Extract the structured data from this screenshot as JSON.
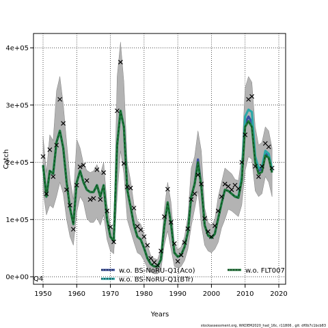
{
  "chart_data": {
    "type": "line",
    "title": "",
    "xlabel": "Years",
    "ylabel": "Catch",
    "xlim": [
      1947.5,
      2021.5
    ],
    "ylim": [
      -15000,
      425000
    ],
    "x_ticks": [
      1950,
      1960,
      1970,
      1980,
      1990,
      2000,
      2010,
      2020
    ],
    "x_tick_labels": [
      "1950",
      "1960",
      "1970",
      "1980",
      "1990",
      "2000",
      "2010",
      "2020"
    ],
    "y_ticks": [
      0,
      100000,
      200000,
      300000,
      400000
    ],
    "y_tick_labels": [
      "0e+00",
      "1e+05",
      "2e+05",
      "3e+05",
      "4e+05"
    ],
    "grid": true,
    "legend_position": "bottom",
    "corner_label": "Q4",
    "footer": "stockassessment.org, WKDEM2020_had_16c, r11806 , git: df0b7c1bcb83",
    "colors": {
      "band": "#b3b3b3",
      "band_edge": "#7f7f7f",
      "aco": "#3b4fa0",
      "btr": "#2aa8a8",
      "flt": "#1f7a3a"
    },
    "years": [
      1950,
      1951,
      1952,
      1953,
      1954,
      1955,
      1956,
      1957,
      1958,
      1959,
      1960,
      1961,
      1962,
      1963,
      1964,
      1965,
      1966,
      1967,
      1968,
      1969,
      1970,
      1971,
      1972,
      1973,
      1974,
      1975,
      1976,
      1977,
      1978,
      1979,
      1980,
      1981,
      1982,
      1983,
      1984,
      1985,
      1986,
      1987,
      1988,
      1989,
      1990,
      1991,
      1992,
      1993,
      1994,
      1995,
      1996,
      1997,
      1998,
      1999,
      2000,
      2001,
      2002,
      2003,
      2004,
      2005,
      2006,
      2007,
      2008,
      2009,
      2010,
      2011,
      2012,
      2013,
      2014,
      2015,
      2016,
      2017,
      2018
    ],
    "band": {
      "lower": [
        150000,
        108000,
        125000,
        120000,
        140000,
        165000,
        145000,
        100000,
        70000,
        55000,
        112000,
        140000,
        130000,
        102000,
        95000,
        95000,
        103000,
        90000,
        108000,
        65000,
        45000,
        40000,
        140000,
        220000,
        180000,
        100000,
        80000,
        60000,
        42000,
        38000,
        28000,
        15000,
        8000,
        5000,
        5000,
        12000,
        55000,
        80000,
        48000,
        18000,
        15000,
        18000,
        28000,
        48000,
        88000,
        118000,
        150000,
        90000,
        55000,
        45000,
        42000,
        48000,
        60000,
        85000,
        100000,
        118000,
        115000,
        110000,
        105000,
        125000,
        185000,
        210000,
        205000,
        150000,
        140000,
        145000,
        175000,
        165000,
        140000
      ],
      "upper": [
        245000,
        182000,
        248000,
        238000,
        325000,
        350000,
        302000,
        235000,
        172000,
        135000,
        240000,
        225000,
        198000,
        186000,
        182000,
        185000,
        196000,
        180000,
        200000,
        128000,
        90000,
        82000,
        350000,
        410000,
        340000,
        200000,
        168000,
        126000,
        98000,
        92000,
        75000,
        55000,
        37000,
        32000,
        30000,
        48000,
        118000,
        165000,
        130000,
        58000,
        48000,
        52000,
        70000,
        105000,
        190000,
        210000,
        255000,
        220000,
        120000,
        95000,
        90000,
        100000,
        140000,
        165000,
        190000,
        185000,
        180000,
        170000,
        168000,
        210000,
        330000,
        350000,
        340000,
        262000,
        230000,
        235000,
        262000,
        255000,
        225000
      ]
    },
    "series": [
      {
        "name": "w.o. BS-NoRU-Q1(Aco)",
        "values": [
          195000,
          140000,
          185000,
          180000,
          235000,
          255000,
          225000,
          165000,
          120000,
          92000,
          165000,
          185000,
          165000,
          152000,
          148000,
          148000,
          160000,
          140000,
          160000,
          100000,
          70000,
          62000,
          230000,
          290000,
          262000,
          152000,
          122000,
          90000,
          70000,
          65000,
          50000,
          32000,
          22000,
          18000,
          18000,
          30000,
          88000,
          130000,
          92000,
          42000,
          35000,
          38000,
          52000,
          78000,
          140000,
          162000,
          205000,
          158000,
          90000,
          72000,
          68000,
          75000,
          102000,
          128000,
          152000,
          150000,
          145000,
          140000,
          138000,
          170000,
          268000,
          280000,
          270000,
          205000,
          185000,
          188000,
          215000,
          212000,
          185000
        ]
      },
      {
        "name": "w.o. BS-NoRU-Q1(BTr)",
        "values": [
          195000,
          140000,
          185000,
          180000,
          235000,
          255000,
          225000,
          165000,
          120000,
          92000,
          165000,
          185000,
          165000,
          152000,
          148000,
          148000,
          160000,
          140000,
          160000,
          100000,
          70000,
          62000,
          230000,
          290000,
          262000,
          152000,
          122000,
          90000,
          70000,
          65000,
          50000,
          32000,
          22000,
          18000,
          18000,
          30000,
          88000,
          130000,
          92000,
          42000,
          35000,
          38000,
          52000,
          78000,
          140000,
          162000,
          198000,
          158000,
          90000,
          72000,
          68000,
          75000,
          102000,
          128000,
          152000,
          150000,
          145000,
          140000,
          140000,
          175000,
          280000,
          292000,
          288000,
          210000,
          190000,
          192000,
          220000,
          215000,
          188000
        ]
      },
      {
        "name": "w.o. FLT007",
        "values": [
          195000,
          140000,
          185000,
          180000,
          235000,
          255000,
          225000,
          165000,
          120000,
          92000,
          165000,
          185000,
          165000,
          152000,
          148000,
          148000,
          160000,
          140000,
          160000,
          100000,
          70000,
          62000,
          230000,
          290000,
          262000,
          152000,
          122000,
          90000,
          70000,
          65000,
          50000,
          32000,
          22000,
          18000,
          18000,
          30000,
          88000,
          130000,
          92000,
          42000,
          35000,
          38000,
          52000,
          78000,
          140000,
          162000,
          200000,
          158000,
          90000,
          72000,
          68000,
          75000,
          102000,
          128000,
          152000,
          150000,
          145000,
          140000,
          138000,
          168000,
          262000,
          272000,
          262000,
          200000,
          180000,
          183000,
          212000,
          208000,
          182000
        ]
      }
    ],
    "observed": {
      "name": "observed",
      "x": [
        1950,
        1951,
        1952,
        1953,
        1954,
        1955,
        1956,
        1957,
        1958,
        1959,
        1960,
        1961,
        1962,
        1963,
        1964,
        1965,
        1966,
        1967,
        1968,
        1969,
        1970,
        1971,
        1972,
        1973,
        1974,
        1975,
        1976,
        1977,
        1978,
        1979,
        1980,
        1981,
        1982,
        1983,
        1984,
        1985,
        1986,
        1987,
        1988,
        1989,
        1990,
        1991,
        1992,
        1993,
        1994,
        1995,
        1996,
        1997,
        1998,
        1999,
        2000,
        2001,
        2002,
        2003,
        2004,
        2005,
        2006,
        2007,
        2008,
        2009,
        2010,
        2011,
        2012,
        2013,
        2014,
        2015,
        2016,
        2017,
        2018
      ],
      "y": [
        210000,
        145000,
        222000,
        175000,
        230000,
        310000,
        268000,
        152000,
        125000,
        83000,
        160000,
        192000,
        195000,
        168000,
        135000,
        137000,
        187000,
        135000,
        182000,
        115000,
        87000,
        61000,
        290000,
        375000,
        198000,
        157000,
        155000,
        120000,
        88000,
        82000,
        70000,
        55000,
        32000,
        25000,
        20000,
        45000,
        105000,
        153000,
        95000,
        58000,
        27000,
        38000,
        60000,
        84000,
        135000,
        145000,
        178000,
        162000,
        102000,
        79000,
        70000,
        89000,
        115000,
        140000,
        162000,
        158000,
        152000,
        160000,
        154000,
        200000,
        248000,
        310000,
        315000,
        193000,
        175000,
        193000,
        233000,
        227000,
        190000
      ]
    }
  }
}
